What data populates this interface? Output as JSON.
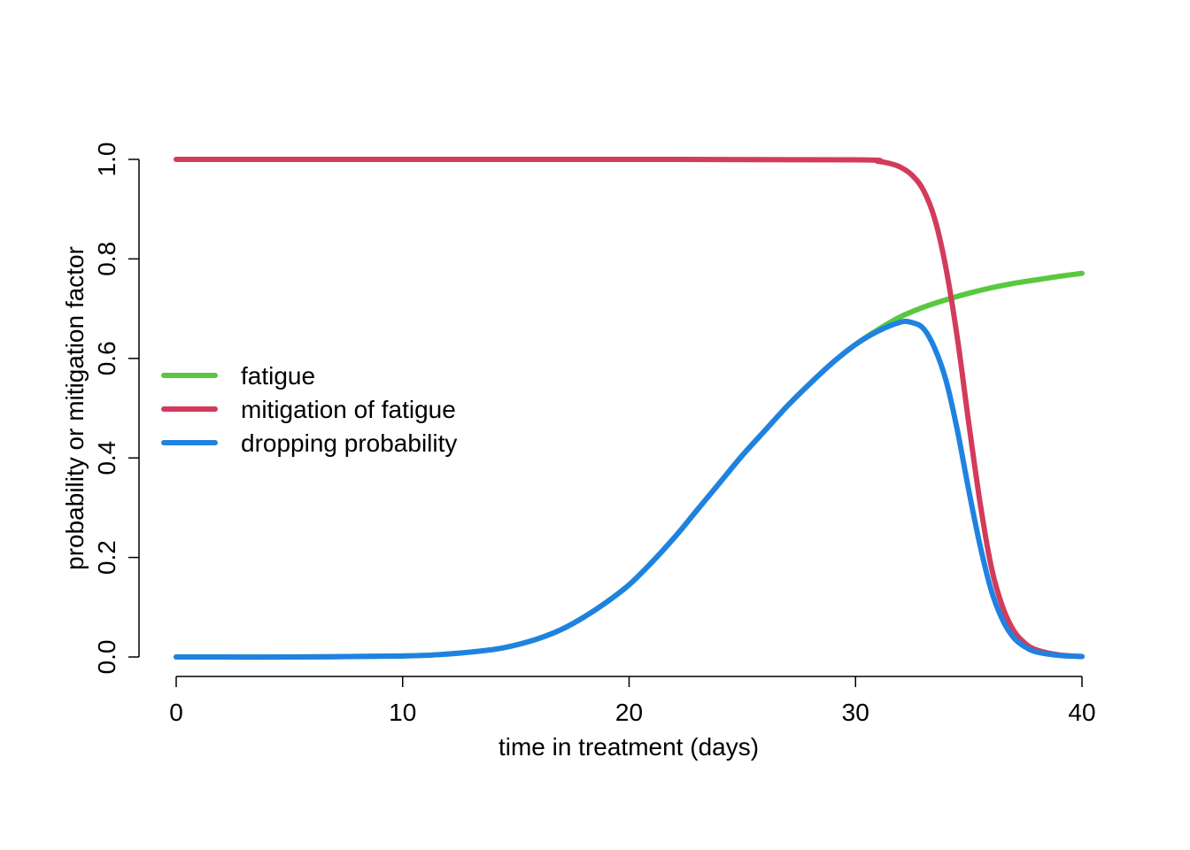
{
  "chart_data": {
    "type": "line",
    "title": "",
    "xlabel": "time in treatment (days)",
    "ylabel": "probability or mitigation factor",
    "xlim": [
      0,
      40
    ],
    "ylim": [
      0,
      1
    ],
    "x_ticks": [
      0,
      10,
      20,
      30,
      40
    ],
    "x_tick_labels": [
      "0",
      "10",
      "20",
      "30",
      "40"
    ],
    "y_ticks": [
      0,
      0.2,
      0.4,
      0.6,
      0.8,
      1.0
    ],
    "y_tick_labels": [
      "0.0",
      "0.2",
      "0.4",
      "0.6",
      "0.8",
      "1.0"
    ],
    "grid": false,
    "legend_position": "left",
    "series": [
      {
        "name": "fatigue",
        "color": "#5ac83f",
        "x": [
          0,
          5,
          10,
          12,
          14,
          15,
          16,
          17,
          18,
          19,
          20,
          21,
          22,
          23,
          24,
          25,
          26,
          27,
          28,
          29,
          30,
          31,
          32,
          33,
          34,
          35,
          36,
          37,
          38,
          39,
          40
        ],
        "y": [
          0,
          0,
          0.002,
          0.006,
          0.015,
          0.024,
          0.037,
          0.055,
          0.08,
          0.11,
          0.145,
          0.19,
          0.24,
          0.295,
          0.35,
          0.405,
          0.455,
          0.505,
          0.55,
          0.592,
          0.628,
          0.658,
          0.684,
          0.703,
          0.718,
          0.731,
          0.742,
          0.751,
          0.758,
          0.765,
          0.771
        ]
      },
      {
        "name": "mitigation of fatigue",
        "color": "#d33b5c",
        "x": [
          0,
          10,
          20,
          30,
          31,
          31.5,
          32,
          32.5,
          33,
          33.5,
          34,
          34.5,
          35,
          35.5,
          36,
          36.5,
          37,
          37.5,
          38,
          39,
          40
        ],
        "y": [
          1,
          1,
          1,
          0.999,
          0.996,
          0.992,
          0.984,
          0.968,
          0.938,
          0.88,
          0.78,
          0.64,
          0.47,
          0.31,
          0.18,
          0.1,
          0.052,
          0.027,
          0.014,
          0.004,
          0.001
        ]
      },
      {
        "name": "dropping probability",
        "color": "#1f82e1",
        "x": [
          0,
          5,
          10,
          12,
          14,
          15,
          16,
          17,
          18,
          19,
          20,
          21,
          22,
          23,
          24,
          25,
          26,
          27,
          28,
          29,
          30,
          31,
          32,
          32.5,
          33,
          33.5,
          34,
          34.5,
          35,
          35.5,
          36,
          36.5,
          37,
          37.5,
          38,
          39,
          40
        ],
        "y": [
          0,
          0,
          0.002,
          0.006,
          0.015,
          0.024,
          0.037,
          0.055,
          0.08,
          0.11,
          0.145,
          0.19,
          0.24,
          0.295,
          0.35,
          0.405,
          0.455,
          0.505,
          0.55,
          0.592,
          0.628,
          0.655,
          0.673,
          0.672,
          0.66,
          0.62,
          0.555,
          0.455,
          0.335,
          0.224,
          0.133,
          0.074,
          0.038,
          0.02,
          0.01,
          0.003,
          0.001
        ]
      }
    ]
  }
}
